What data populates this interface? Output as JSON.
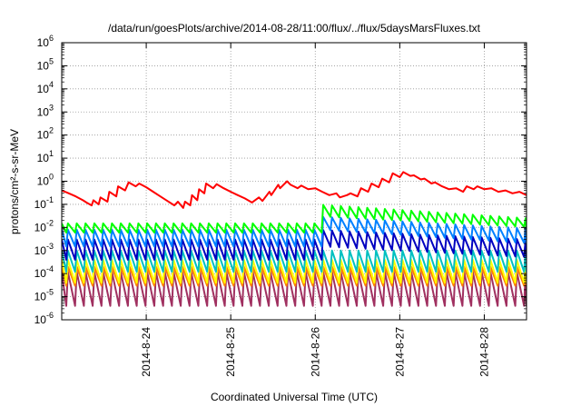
{
  "chart_data": {
    "type": "line",
    "title": "/data/run/goesPlots/archive/2014-08-28/11:00/flux/../flux/5daysMarsFluxes.txt",
    "xlabel": "Coordinated Universal Time (UTC)",
    "ylabel": "protons/cm²-s-sr-MeV",
    "y_scale": "log",
    "ylim": [
      1e-06,
      1000000.0
    ],
    "y_ticks": [
      {
        "value": 1e-06,
        "base": "10",
        "exp": "-6"
      },
      {
        "value": 1e-05,
        "base": "10",
        "exp": "-5"
      },
      {
        "value": 0.0001,
        "base": "10",
        "exp": "-4"
      },
      {
        "value": 0.001,
        "base": "10",
        "exp": "-3"
      },
      {
        "value": 0.01,
        "base": "10",
        "exp": "-2"
      },
      {
        "value": 0.1,
        "base": "10",
        "exp": "-1"
      },
      {
        "value": 1,
        "base": "10",
        "exp": "0"
      },
      {
        "value": 10,
        "base": "10",
        "exp": "1"
      },
      {
        "value": 100,
        "base": "10",
        "exp": "2"
      },
      {
        "value": 1000,
        "base": "10",
        "exp": "3"
      },
      {
        "value": 10000,
        "base": "10",
        "exp": "4"
      },
      {
        "value": 100000,
        "base": "10",
        "exp": "5"
      },
      {
        "value": 1000000,
        "base": "10",
        "exp": "6"
      }
    ],
    "xlim": [
      "2014-08-23T00:00",
      "2014-08-28T12:00"
    ],
    "x_ticks": [
      {
        "value": "2014-08-24T00:00",
        "label": "2014-8-24"
      },
      {
        "value": "2014-08-25T00:00",
        "label": "2014-8-25"
      },
      {
        "value": "2014-08-26T00:00",
        "label": "2014-8-26"
      },
      {
        "value": "2014-08-27T00:00",
        "label": "2014-8-27"
      },
      {
        "value": "2014-08-28T00:00",
        "label": "2014-8-28"
      }
    ],
    "grid": true,
    "legend": "none",
    "series": [
      {
        "color": "#ff0000",
        "x": [
          "2014-08-23T00:00",
          "2014-08-23T02:00",
          "2014-08-23T04:00",
          "2014-08-23T06:00",
          "2014-08-23T07:00",
          "2014-08-23T08:30",
          "2014-08-23T09:00",
          "2014-08-23T10:30",
          "2014-08-23T11:00",
          "2014-08-23T13:00",
          "2014-08-23T13:30",
          "2014-08-23T15:30",
          "2014-08-23T16:00",
          "2014-08-23T18:00",
          "2014-08-23T19:00",
          "2014-08-23T21:00",
          "2014-08-23T22:00",
          "2014-08-24T00:00",
          "2014-08-24T02:00",
          "2014-08-24T04:00",
          "2014-08-24T06:00",
          "2014-08-24T08:00",
          "2014-08-24T09:00",
          "2014-08-24T10:30",
          "2014-08-24T11:00",
          "2014-08-24T12:30",
          "2014-08-24T13:00",
          "2014-08-24T14:30",
          "2014-08-24T15:00",
          "2014-08-24T16:30",
          "2014-08-24T17:00",
          "2014-08-24T19:00",
          "2014-08-24T20:00",
          "2014-08-24T22:00",
          "2014-08-25T00:00",
          "2014-08-25T02:00",
          "2014-08-25T04:00",
          "2014-08-25T06:00",
          "2014-08-25T08:00",
          "2014-08-25T09:00",
          "2014-08-25T11:00",
          "2014-08-25T11:30",
          "2014-08-25T13:30",
          "2014-08-25T14:00",
          "2014-08-25T16:00",
          "2014-08-25T17:00",
          "2014-08-25T19:00",
          "2014-08-25T20:00",
          "2014-08-25T22:00",
          "2014-08-26T00:00",
          "2014-08-26T02:00",
          "2014-08-26T04:00",
          "2014-08-26T06:00",
          "2014-08-26T07:00",
          "2014-08-26T09:00",
          "2014-08-26T10:00",
          "2014-08-26T12:00",
          "2014-08-26T13:00",
          "2014-08-26T15:00",
          "2014-08-26T16:00",
          "2014-08-26T18:00",
          "2014-08-26T19:00",
          "2014-08-26T21:00",
          "2014-08-26T22:00",
          "2014-08-27T00:00",
          "2014-08-27T01:00",
          "2014-08-27T03:00",
          "2014-08-27T04:00",
          "2014-08-27T06:00",
          "2014-08-27T07:00",
          "2014-08-27T09:00",
          "2014-08-27T10:00",
          "2014-08-27T12:00",
          "2014-08-27T14:00",
          "2014-08-27T16:00",
          "2014-08-27T18:00",
          "2014-08-27T19:00",
          "2014-08-27T21:00",
          "2014-08-27T22:00",
          "2014-08-28T00:00",
          "2014-08-28T02:00",
          "2014-08-28T04:00",
          "2014-08-28T06:00",
          "2014-08-28T08:00",
          "2014-08-28T10:00",
          "2014-08-28T12:00"
        ],
        "y": [
          0.4,
          0.3,
          0.22,
          0.15,
          0.12,
          0.09,
          0.15,
          0.1,
          0.2,
          0.13,
          0.35,
          0.22,
          0.6,
          0.4,
          0.9,
          0.6,
          0.8,
          0.55,
          0.35,
          0.22,
          0.14,
          0.09,
          0.13,
          0.07,
          0.13,
          0.09,
          0.25,
          0.15,
          0.45,
          0.3,
          0.8,
          0.5,
          0.75,
          0.5,
          0.35,
          0.25,
          0.18,
          0.12,
          0.2,
          0.14,
          0.35,
          0.25,
          0.7,
          0.5,
          1.0,
          0.7,
          0.5,
          0.65,
          0.45,
          0.5,
          0.35,
          0.25,
          0.3,
          0.2,
          0.25,
          0.3,
          0.22,
          0.5,
          0.35,
          0.8,
          0.55,
          1.3,
          0.9,
          2.2,
          1.5,
          2.5,
          1.7,
          1.8,
          1.2,
          1.3,
          0.8,
          0.9,
          0.6,
          0.45,
          0.5,
          0.35,
          0.6,
          0.45,
          0.6,
          0.45,
          0.5,
          0.35,
          0.4,
          0.3,
          0.35,
          0.25
        ]
      },
      {
        "color": "#00ff00",
        "period_h": 2.5,
        "peak": 0.015,
        "trough": 0.006,
        "step": {
          "at": "2014-08-26T00:00",
          "peak": 0.1,
          "trough": 0.03,
          "decay_to": {
            "peak": 0.025,
            "trough": 0.01
          }
        }
      },
      {
        "color": "#0080ff",
        "period_h": 2.5,
        "peak": 0.008,
        "trough": 0.0015,
        "step": {
          "at": "2014-08-26T00:00",
          "peak": 0.03,
          "trough": 0.008,
          "decay_to": {
            "peak": 0.009,
            "trough": 0.002
          }
        }
      },
      {
        "color": "#0000c0",
        "period_h": 2.5,
        "peak": 0.003,
        "trough": 0.0004,
        "step": {
          "at": "2014-08-26T00:00",
          "peak": 0.008,
          "trough": 0.0015,
          "decay_to": {
            "peak": 0.003,
            "trough": 0.0005
          }
        }
      },
      {
        "color": "#00c0c0",
        "period_h": 2.5,
        "peak": 0.001,
        "trough": 0.00012
      },
      {
        "color": "#ffff00",
        "period_h": 2.5,
        "peak": 0.0004,
        "trough": 4e-05
      },
      {
        "color": "#ff8000",
        "period_h": 2.5,
        "peak": 0.0002,
        "trough": 3e-05
      },
      {
        "color": "#a03060",
        "period_h": 2.5,
        "peak": 0.00012,
        "trough": 4e-06
      }
    ]
  }
}
